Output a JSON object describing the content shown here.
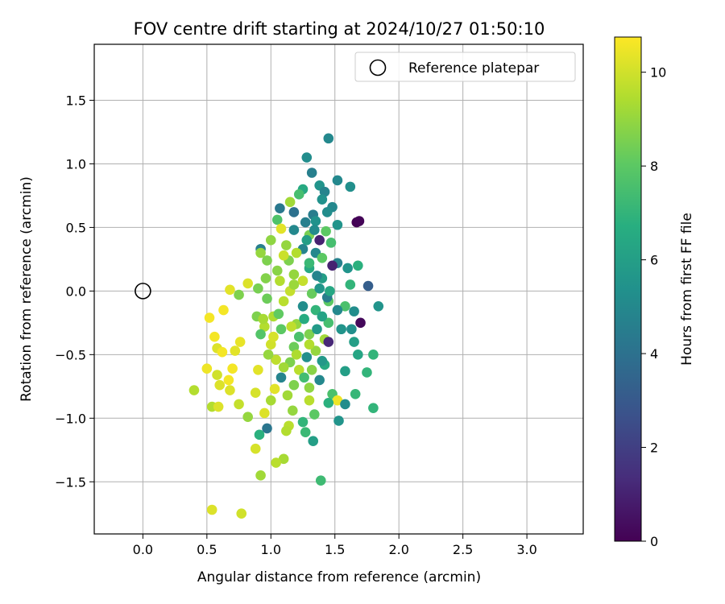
{
  "chart_data": {
    "type": "scatter",
    "title": "FOV centre drift starting at 2024/10/27 01:50:10",
    "xlabel": "Angular distance from reference (arcmin)",
    "ylabel": "Rotation from reference (arcmin)",
    "xlim": [
      -0.38,
      3.44
    ],
    "ylim": [
      -1.91,
      1.94
    ],
    "xticks": [
      "0.0",
      "0.5",
      "1.0",
      "1.5",
      "2.0",
      "2.5",
      "3.0"
    ],
    "yticks": [
      "−1.5",
      "−1.0",
      "−0.5",
      "0.0",
      "0.5",
      "1.0",
      "1.5"
    ],
    "grid": true,
    "legend": {
      "placement": "upper right",
      "label": "Reference platepar"
    },
    "reference_point": {
      "x": 0.0,
      "y": 0.0
    },
    "colorbar": {
      "label": "Hours from first FF file",
      "range": [
        0,
        10.75
      ],
      "ticks": [
        "0",
        "2",
        "4",
        "6",
        "8",
        "10"
      ],
      "colormap": "viridis"
    },
    "points": [
      [
        1.45,
        1.2,
        5.0
      ],
      [
        1.28,
        1.05,
        5.2
      ],
      [
        1.32,
        0.93,
        4.6
      ],
      [
        1.52,
        0.87,
        5.0
      ],
      [
        1.62,
        0.82,
        5.3
      ],
      [
        1.38,
        0.83,
        5.5
      ],
      [
        1.25,
        0.8,
        6.5
      ],
      [
        1.42,
        0.78,
        4.8
      ],
      [
        1.22,
        0.76,
        7.5
      ],
      [
        1.4,
        0.72,
        5.4
      ],
      [
        1.15,
        0.7,
        9.2
      ],
      [
        1.48,
        0.66,
        5.0
      ],
      [
        1.07,
        0.65,
        4.3
      ],
      [
        1.44,
        0.62,
        5.2
      ],
      [
        1.18,
        0.62,
        4.0
      ],
      [
        1.33,
        0.6,
        4.5
      ],
      [
        1.05,
        0.56,
        7.7
      ],
      [
        1.27,
        0.54,
        4.6
      ],
      [
        1.35,
        0.55,
        5.4
      ],
      [
        1.67,
        0.54,
        0.0
      ],
      [
        1.69,
        0.55,
        0.1
      ],
      [
        1.52,
        0.52,
        5.5
      ],
      [
        1.18,
        0.48,
        5.0
      ],
      [
        1.08,
        0.49,
        10.3
      ],
      [
        1.43,
        0.47,
        8.0
      ],
      [
        1.3,
        0.44,
        8.5
      ],
      [
        1.38,
        0.4,
        1.0
      ],
      [
        1.47,
        0.38,
        7.5
      ],
      [
        1.12,
        0.36,
        9.0
      ],
      [
        1.25,
        0.33,
        4.8
      ],
      [
        1.35,
        0.3,
        5.0
      ],
      [
        0.92,
        0.33,
        4.6
      ],
      [
        0.92,
        0.3,
        9.0
      ],
      [
        1.2,
        0.3,
        9.5
      ],
      [
        1.4,
        0.26,
        8.0
      ],
      [
        1.52,
        0.22,
        4.7
      ],
      [
        1.6,
        0.18,
        5.5
      ],
      [
        1.68,
        0.2,
        6.8
      ],
      [
        1.48,
        0.2,
        1.0
      ],
      [
        1.3,
        0.18,
        6.5
      ],
      [
        1.05,
        0.16,
        8.8
      ],
      [
        0.97,
        0.24,
        8.6
      ],
      [
        1.18,
        0.13,
        9.0
      ],
      [
        1.4,
        0.1,
        6.0
      ],
      [
        1.25,
        0.08,
        9.8
      ],
      [
        1.07,
        0.08,
        9.5
      ],
      [
        1.62,
        0.05,
        7.0
      ],
      [
        0.82,
        0.06,
        10.2
      ],
      [
        0.9,
        0.02,
        8.5
      ],
      [
        1.15,
        0.0,
        9.8
      ],
      [
        1.32,
        -0.02,
        8.2
      ],
      [
        1.38,
        0.02,
        5.6
      ],
      [
        0.75,
        -0.03,
        8.6
      ],
      [
        0.68,
        0.01,
        10.3
      ],
      [
        1.76,
        0.04,
        3.2
      ],
      [
        1.45,
        -0.08,
        8.0
      ],
      [
        1.1,
        -0.08,
        9.6
      ],
      [
        0.97,
        -0.06,
        8.3
      ],
      [
        1.58,
        -0.12,
        7.6
      ],
      [
        1.84,
        -0.12,
        5.5
      ],
      [
        1.25,
        -0.12,
        5.2
      ],
      [
        1.35,
        -0.15,
        7.0
      ],
      [
        0.63,
        -0.15,
        10.6
      ],
      [
        1.52,
        -0.15,
        5.0
      ],
      [
        1.65,
        -0.16,
        5.2
      ],
      [
        0.89,
        -0.2,
        8.6
      ],
      [
        1.02,
        -0.2,
        9.4
      ],
      [
        0.52,
        -0.21,
        10.6
      ],
      [
        1.7,
        -0.25,
        0.2
      ],
      [
        1.45,
        -0.25,
        7.5
      ],
      [
        1.2,
        -0.26,
        9.0
      ],
      [
        0.95,
        -0.28,
        9.5
      ],
      [
        1.08,
        -0.3,
        8.0
      ],
      [
        1.55,
        -0.3,
        5.5
      ],
      [
        1.63,
        -0.3,
        5.3
      ],
      [
        1.3,
        -0.34,
        8.6
      ],
      [
        0.92,
        -0.34,
        7.8
      ],
      [
        0.56,
        -0.36,
        10.6
      ],
      [
        1.42,
        -0.38,
        9.2
      ],
      [
        1.65,
        -0.4,
        6.0
      ],
      [
        1.45,
        -0.4,
        1.2
      ],
      [
        1.0,
        -0.42,
        10.0
      ],
      [
        1.18,
        -0.44,
        8.3
      ],
      [
        0.76,
        -0.4,
        10.4
      ],
      [
        0.58,
        -0.45,
        10.2
      ],
      [
        0.72,
        -0.47,
        10.3
      ],
      [
        1.35,
        -0.47,
        9.0
      ],
      [
        1.68,
        -0.5,
        6.3
      ],
      [
        1.8,
        -0.5,
        7.0
      ],
      [
        0.62,
        -0.48,
        10.6
      ],
      [
        1.28,
        -0.52,
        5.3
      ],
      [
        1.04,
        -0.54,
        9.7
      ],
      [
        1.15,
        -0.56,
        8.6
      ],
      [
        1.42,
        -0.58,
        6.5
      ],
      [
        0.5,
        -0.61,
        10.5
      ],
      [
        0.9,
        -0.62,
        10.3
      ],
      [
        1.22,
        -0.62,
        9.6
      ],
      [
        1.32,
        -0.62,
        8.8
      ],
      [
        0.7,
        -0.61,
        10.6
      ],
      [
        1.58,
        -0.63,
        6.0
      ],
      [
        1.75,
        -0.64,
        7.0
      ],
      [
        0.58,
        -0.66,
        10.0
      ],
      [
        1.08,
        -0.68,
        4.8
      ],
      [
        1.38,
        -0.7,
        5.0
      ],
      [
        0.67,
        -0.7,
        10.6
      ],
      [
        1.18,
        -0.74,
        8.6
      ],
      [
        0.6,
        -0.74,
        10.2
      ],
      [
        1.03,
        -0.77,
        10.3
      ],
      [
        1.3,
        -0.76,
        8.9
      ],
      [
        0.4,
        -0.78,
        9.5
      ],
      [
        0.68,
        -0.78,
        10.2
      ],
      [
        0.88,
        -0.8,
        10.1
      ],
      [
        1.48,
        -0.81,
        7.6
      ],
      [
        1.66,
        -0.81,
        7.1
      ],
      [
        1.13,
        -0.82,
        9.2
      ],
      [
        1.0,
        -0.86,
        9.3
      ],
      [
        1.3,
        -0.86,
        9.6
      ],
      [
        1.52,
        -0.86,
        10.5
      ],
      [
        0.75,
        -0.89,
        9.8
      ],
      [
        1.45,
        -0.88,
        6.8
      ],
      [
        1.58,
        -0.89,
        5.2
      ],
      [
        1.8,
        -0.92,
        7.0
      ],
      [
        0.54,
        -0.91,
        9.5
      ],
      [
        0.59,
        -0.91,
        10.2
      ],
      [
        1.17,
        -0.94,
        9.0
      ],
      [
        0.95,
        -0.96,
        10.2
      ],
      [
        0.82,
        -0.99,
        9.0
      ],
      [
        1.34,
        -0.97,
        8.0
      ],
      [
        1.53,
        -1.02,
        5.5
      ],
      [
        1.25,
        -1.03,
        7.0
      ],
      [
        1.14,
        -1.06,
        9.6
      ],
      [
        0.97,
        -1.08,
        4.2
      ],
      [
        1.27,
        -1.11,
        7.2
      ],
      [
        1.12,
        -1.1,
        9.5
      ],
      [
        0.91,
        -1.13,
        6.8
      ],
      [
        1.33,
        -1.18,
        6.0
      ],
      [
        0.88,
        -1.24,
        10.1
      ],
      [
        1.1,
        -1.32,
        9.3
      ],
      [
        1.04,
        -1.35,
        9.6
      ],
      [
        0.92,
        -1.45,
        9.2
      ],
      [
        1.39,
        -1.49,
        7.3
      ],
      [
        0.54,
        -1.72,
        10.2
      ],
      [
        0.77,
        -1.75,
        10.0
      ],
      [
        1.36,
        0.12,
        4.8
      ],
      [
        1.4,
        -0.2,
        6.2
      ],
      [
        1.3,
        0.22,
        7.2
      ],
      [
        1.22,
        -0.36,
        7.6
      ],
      [
        1.14,
        0.24,
        8.6
      ],
      [
        1.26,
        -0.22,
        6.6
      ],
      [
        1.0,
        0.4,
        8.9
      ],
      [
        0.98,
        -0.5,
        9.0
      ],
      [
        1.1,
        -0.6,
        9.2
      ],
      [
        1.28,
        0.4,
        6.0
      ],
      [
        1.44,
        -0.05,
        4.5
      ],
      [
        1.36,
        -0.3,
        5.8
      ],
      [
        1.18,
        0.05,
        9.1
      ],
      [
        1.06,
        -0.18,
        8.1
      ],
      [
        0.96,
        0.1,
        8.7
      ],
      [
        1.2,
        -0.5,
        9.4
      ],
      [
        1.34,
        0.48,
        5.1
      ],
      [
        1.1,
        0.28,
        9.9
      ],
      [
        1.26,
        -0.68,
        7.4
      ],
      [
        1.4,
        -0.55,
        5.7
      ],
      [
        1.46,
        0.0,
        6.4
      ],
      [
        1.16,
        -0.28,
        9.7
      ],
      [
        1.02,
        -0.36,
        10.1
      ],
      [
        0.94,
        -0.22,
        9.3
      ],
      [
        1.3,
        -0.42,
        9.5
      ]
    ]
  }
}
